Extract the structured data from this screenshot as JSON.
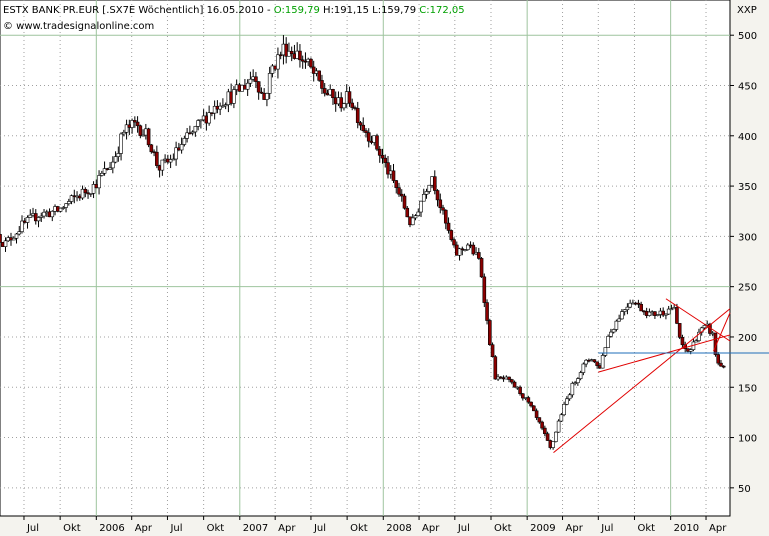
{
  "header": {
    "instrument": "ESTX BANK PR.EUR [.SX7E  Wöchentlich] 16.05.2010 -",
    "open": "O:159,79",
    "high": "H:191,15",
    "low": "L:159,79",
    "close": "C:172,05",
    "source": "© www.tradesignalonline.com",
    "symbol": "XXP"
  },
  "colors": {
    "up_candle": "#ffffff",
    "down_candle": "#8b0000",
    "trendline": "#e00000",
    "support_line": "#1e6eb8",
    "gridline": "#9ec49e",
    "green_text": "#00a000"
  },
  "chart_data": {
    "type": "candlestick",
    "period": "weekly",
    "ylim": [
      22,
      535
    ],
    "yticks": [
      50,
      100,
      150,
      200,
      250,
      300,
      350,
      400,
      450,
      500
    ],
    "xlim": [
      "2005-05-01",
      "2010-06-01"
    ],
    "xticks": [
      {
        "label": "Jul",
        "date": "2005-07-01"
      },
      {
        "label": "Okt",
        "date": "2005-10-01"
      },
      {
        "label": "2006",
        "date": "2006-01-01"
      },
      {
        "label": "Apr",
        "date": "2006-04-01"
      },
      {
        "label": "Jul",
        "date": "2006-07-01"
      },
      {
        "label": "Okt",
        "date": "2006-10-01"
      },
      {
        "label": "2007",
        "date": "2007-01-01"
      },
      {
        "label": "Apr",
        "date": "2007-04-01"
      },
      {
        "label": "Jul",
        "date": "2007-07-01"
      },
      {
        "label": "Okt",
        "date": "2007-10-01"
      },
      {
        "label": "2008",
        "date": "2008-01-01"
      },
      {
        "label": "Apr",
        "date": "2008-04-01"
      },
      {
        "label": "Jul",
        "date": "2008-07-01"
      },
      {
        "label": "Okt",
        "date": "2008-10-01"
      },
      {
        "label": "2009",
        "date": "2009-01-01"
      },
      {
        "label": "Apr",
        "date": "2009-04-01"
      },
      {
        "label": "Jul",
        "date": "2009-07-01"
      },
      {
        "label": "Okt",
        "date": "2009-10-01"
      },
      {
        "label": "2010",
        "date": "2010-01-01"
      },
      {
        "label": "Apr",
        "date": "2010-04-01"
      }
    ],
    "price_path": [
      [
        "2005-05-01",
        302
      ],
      [
        "2005-05-20",
        292
      ],
      [
        "2005-07-01",
        310
      ],
      [
        "2005-08-15",
        322
      ],
      [
        "2005-10-01",
        325
      ],
      [
        "2005-11-20",
        340
      ],
      [
        "2006-01-01",
        350
      ],
      [
        "2006-02-20",
        375
      ],
      [
        "2006-03-20",
        405
      ],
      [
        "2006-04-20",
        412
      ],
      [
        "2006-05-20",
        398
      ],
      [
        "2006-06-15",
        368
      ],
      [
        "2006-07-15",
        375
      ],
      [
        "2006-08-15",
        392
      ],
      [
        "2006-09-15",
        405
      ],
      [
        "2006-10-15",
        420
      ],
      [
        "2006-11-20",
        435
      ],
      [
        "2006-12-20",
        440
      ],
      [
        "2007-01-20",
        450
      ],
      [
        "2007-02-15",
        462
      ],
      [
        "2007-03-10",
        435
      ],
      [
        "2007-04-01",
        468
      ],
      [
        "2007-05-01",
        488
      ],
      [
        "2007-06-01",
        482
      ],
      [
        "2007-07-01",
        470
      ],
      [
        "2007-08-10",
        445
      ],
      [
        "2007-09-15",
        432
      ],
      [
        "2007-10-15",
        438
      ],
      [
        "2007-11-15",
        410
      ],
      [
        "2007-12-15",
        395
      ],
      [
        "2008-01-20",
        365
      ],
      [
        "2008-02-20",
        340
      ],
      [
        "2008-03-20",
        310
      ],
      [
        "2008-04-15",
        338
      ],
      [
        "2008-05-10",
        362
      ],
      [
        "2008-06-10",
        318
      ],
      [
        "2008-07-10",
        282
      ],
      [
        "2008-08-10",
        292
      ],
      [
        "2008-09-10",
        275
      ],
      [
        "2008-10-01",
        205
      ],
      [
        "2008-10-20",
        158
      ],
      [
        "2008-11-15",
        158
      ],
      [
        "2008-12-15",
        148
      ],
      [
        "2009-01-15",
        132
      ],
      [
        "2009-02-15",
        108
      ],
      [
        "2009-03-09",
        88
      ],
      [
        "2009-04-01",
        120
      ],
      [
        "2009-05-01",
        150
      ],
      [
        "2009-06-01",
        172
      ],
      [
        "2009-06-20",
        180
      ],
      [
        "2009-07-10",
        168
      ],
      [
        "2009-08-01",
        200
      ],
      [
        "2009-09-01",
        222
      ],
      [
        "2009-10-01",
        238
      ],
      [
        "2009-10-20",
        230
      ],
      [
        "2009-11-20",
        222
      ],
      [
        "2009-12-20",
        225
      ],
      [
        "2010-01-15",
        230
      ],
      [
        "2010-02-05",
        190
      ],
      [
        "2010-02-25",
        185
      ],
      [
        "2010-03-20",
        205
      ],
      [
        "2010-04-10",
        210
      ],
      [
        "2010-04-25",
        202
      ],
      [
        "2010-05-05",
        175
      ],
      [
        "2010-05-16",
        172
      ]
    ],
    "trendlines": [
      {
        "points": [
          [
            "2009-03-09",
            85
          ],
          [
            "2010-06-01",
            228
          ]
        ]
      },
      {
        "points": [
          [
            "2009-07-01",
            165
          ],
          [
            "2010-06-01",
            202
          ]
        ]
      },
      {
        "points": [
          [
            "2009-12-20",
            238
          ],
          [
            "2010-06-01",
            196
          ]
        ]
      },
      {
        "points": [
          [
            "2010-04-20",
            186
          ],
          [
            "2010-06-01",
            224
          ]
        ]
      }
    ],
    "support_line": {
      "from": "2009-07-01",
      "value": 184
    }
  }
}
